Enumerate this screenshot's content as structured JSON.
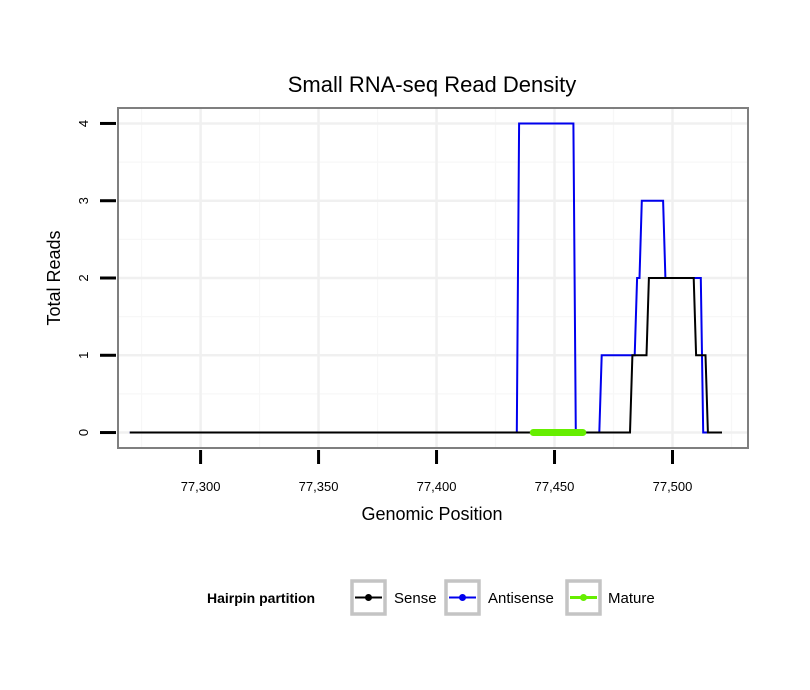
{
  "chart_data": {
    "type": "line",
    "title": "Small RNA-seq Read Density",
    "xlabel": "Genomic Position",
    "ylabel": "Total Reads",
    "xlim": [
      77265,
      77532
    ],
    "ylim": [
      -0.2,
      4.2
    ],
    "x_ticks": [
      77300,
      77350,
      77400,
      77450,
      77500
    ],
    "x_tick_labels": [
      "77,300",
      "77,350",
      "77,400",
      "77,450",
      "77,500"
    ],
    "y_ticks": [
      0,
      1,
      2,
      3,
      4
    ],
    "y_tick_labels": [
      "0",
      "1",
      "2",
      "3",
      "4"
    ],
    "grid": true,
    "legend": {
      "title": "Hairpin partition",
      "position": "bottom",
      "entries": [
        "Sense",
        "Antisense",
        "Mature"
      ]
    },
    "series": [
      {
        "name": "Antisense",
        "color": "#0000ee",
        "x": [
          77270,
          77434,
          77435,
          77458,
          77459,
          77469,
          77470,
          77484,
          77485,
          77486,
          77487,
          77488,
          77495,
          77496,
          77497,
          77509,
          77510,
          77512,
          77513,
          77516
        ],
        "y": [
          0,
          0,
          4,
          4,
          0,
          0,
          1,
          1,
          2,
          2,
          3,
          3,
          3,
          3,
          2,
          2,
          2,
          2,
          0,
          0
        ]
      },
      {
        "name": "Sense",
        "color": "#000000",
        "x": [
          77270,
          77482,
          77483,
          77486,
          77487,
          77489,
          77490,
          77509,
          77510,
          77514,
          77515,
          77521
        ],
        "y": [
          0,
          0,
          1,
          1,
          1,
          1,
          2,
          2,
          1,
          1,
          0,
          0
        ]
      },
      {
        "name": "Mature",
        "color": "#66ee00",
        "x": [
          77441,
          77462
        ],
        "y": [
          0,
          0
        ]
      }
    ]
  }
}
